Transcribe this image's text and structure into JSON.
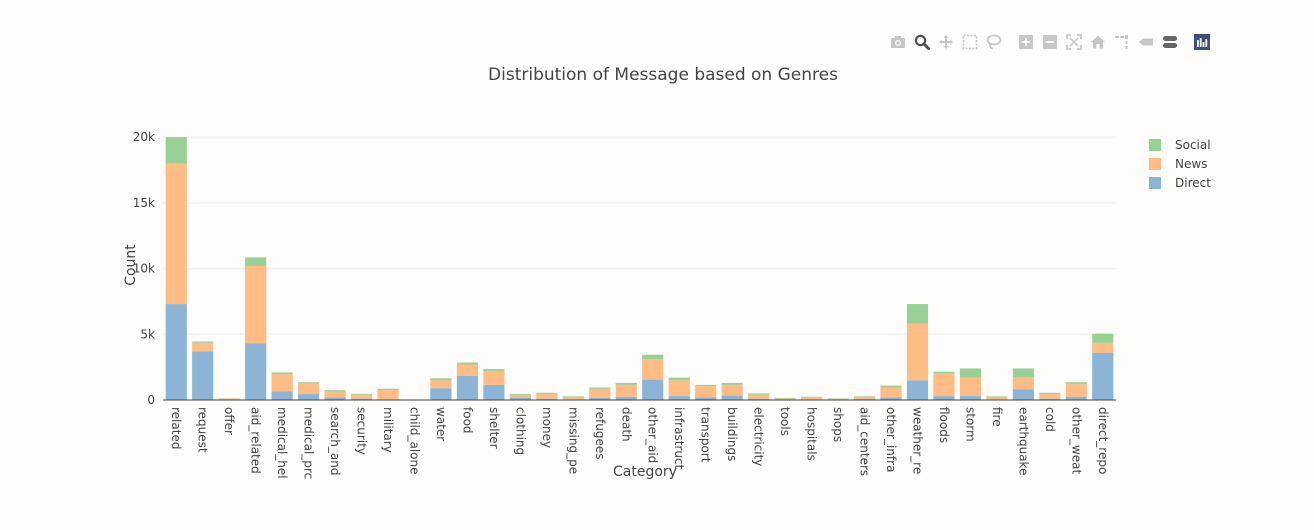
{
  "modebar": {
    "buttons": [
      {
        "icon": "camera-icon",
        "name": "download-plot-button"
      },
      {
        "icon": "zoom-icon",
        "name": "zoom-button",
        "active": true
      },
      {
        "icon": "pan-icon",
        "name": "pan-button"
      },
      {
        "icon": "box-select-icon",
        "name": "box-select-button"
      },
      {
        "icon": "lasso-icon",
        "name": "lasso-select-button"
      },
      {
        "icon": "zoom-in-icon",
        "name": "zoom-in-button",
        "group": 2
      },
      {
        "icon": "zoom-out-icon",
        "name": "zoom-out-button"
      },
      {
        "icon": "autoscale-icon",
        "name": "autoscale-button"
      },
      {
        "icon": "home-icon",
        "name": "reset-axes-button"
      },
      {
        "icon": "spike-lines-icon",
        "name": "spike-lines-button"
      },
      {
        "icon": "hover-closest-icon",
        "name": "hover-closest-button"
      },
      {
        "icon": "hover-compare-icon",
        "name": "hover-compare-button"
      },
      {
        "icon": "plotly-logo-icon",
        "name": "plotly-logo-link",
        "group": 3
      }
    ]
  },
  "chart_data": {
    "type": "bar",
    "barmode": "stack",
    "title": "Distribution of Message based on Genres",
    "xlabel": "Category",
    "ylabel": "Count",
    "ylim": [
      0,
      21000
    ],
    "yticks": [
      0,
      5000,
      10000,
      15000,
      20000
    ],
    "ytick_labels": [
      "0",
      "5k",
      "10k",
      "15k",
      "20k"
    ],
    "grid": true,
    "legend_position": "top-right",
    "categories": [
      "related",
      "request",
      "offer",
      "aid_related",
      "medical_hel",
      "medical_prc",
      "search_and",
      "security",
      "military",
      "child_alone",
      "water",
      "food",
      "shelter",
      "clothing",
      "money",
      "missing_pe",
      "refugees",
      "death",
      "other_aid",
      "infrastructu",
      "transport",
      "buildings",
      "electricity",
      "tools",
      "hospitals",
      "shops",
      "aid_centers",
      "other_infras",
      "weather_re",
      "floods",
      "storm",
      "fire",
      "earthquake",
      "cold",
      "other_weat",
      "direct_repo"
    ],
    "series": [
      {
        "name": "Direct",
        "color": "#8cb4d6",
        "values": [
          7300,
          3700,
          40,
          4300,
          650,
          450,
          200,
          100,
          60,
          0,
          900,
          1850,
          1150,
          200,
          100,
          40,
          150,
          250,
          1550,
          300,
          200,
          350,
          100,
          30,
          30,
          20,
          80,
          200,
          1500,
          300,
          300,
          60,
          800,
          100,
          250,
          3600
        ]
      },
      {
        "name": "News",
        "color": "#ffbc85",
        "values": [
          10700,
          650,
          70,
          5900,
          1300,
          800,
          450,
          300,
          700,
          0,
          600,
          850,
          1050,
          150,
          350,
          200,
          700,
          900,
          1550,
          1200,
          850,
          800,
          300,
          80,
          170,
          80,
          150,
          750,
          4300,
          1700,
          1400,
          170,
          950,
          350,
          950,
          750
        ]
      },
      {
        "name": "Social",
        "color": "#99d096",
        "values": [
          2000,
          100,
          20,
          650,
          150,
          100,
          100,
          70,
          100,
          0,
          150,
          150,
          150,
          100,
          100,
          50,
          100,
          150,
          350,
          200,
          100,
          150,
          100,
          50,
          50,
          30,
          50,
          150,
          1500,
          150,
          700,
          50,
          650,
          100,
          150,
          700
        ]
      }
    ]
  }
}
